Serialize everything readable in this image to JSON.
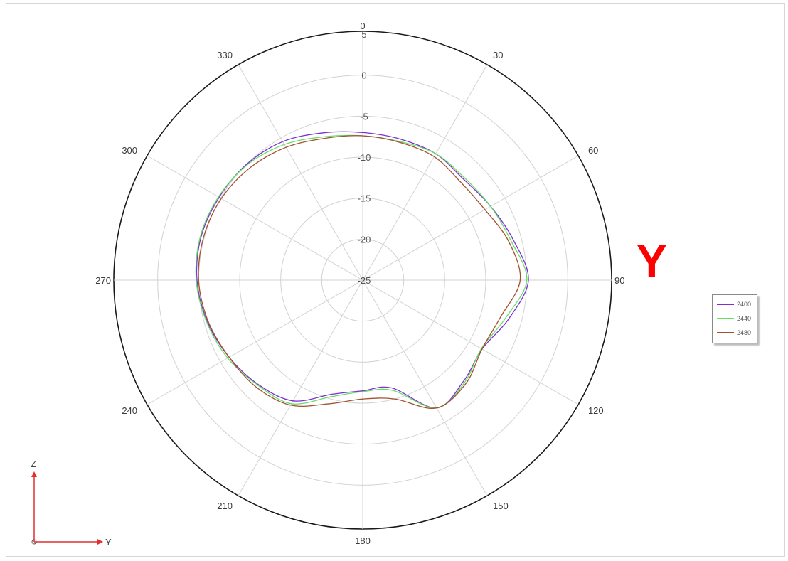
{
  "plane_label": "Y",
  "axis_triad": {
    "z_label": "Z",
    "y_label": "Y",
    "color": "#e03030"
  },
  "chart_data": {
    "type": "polar-line",
    "title": "",
    "angle_labels": [
      "0",
      "30",
      "60",
      "90",
      "120",
      "150",
      "180",
      "210",
      "240",
      "270",
      "300",
      "330"
    ],
    "angle_ticks": [
      0,
      30,
      60,
      90,
      120,
      150,
      180,
      210,
      240,
      270,
      300,
      330
    ],
    "radial_labels": [
      "5",
      "0",
      "-5",
      "-10",
      "-15",
      "-20",
      "-25"
    ],
    "radial_ticks": [
      5,
      0,
      -5,
      -10,
      -15,
      -20,
      -25
    ],
    "r_range": [
      -25,
      5
    ],
    "angle_direction": "clockwise",
    "angle_zero": "top",
    "grid": true,
    "legend_position": "right",
    "series": [
      {
        "name": "2400",
        "color": "#7b2fd4",
        "points": [
          [
            0,
            -7.0
          ],
          [
            15,
            -7.2
          ],
          [
            30,
            -7.2
          ],
          [
            45,
            -7.6
          ],
          [
            60,
            -7.0
          ],
          [
            75,
            -6.0
          ],
          [
            90,
            -4.8
          ],
          [
            105,
            -6.6
          ],
          [
            120,
            -8.2
          ],
          [
            135,
            -7.6
          ],
          [
            150,
            -7.0
          ],
          [
            165,
            -11.4
          ],
          [
            180,
            -11.5
          ],
          [
            195,
            -10.6
          ],
          [
            210,
            -8.0
          ],
          [
            225,
            -7.0
          ],
          [
            240,
            -6.2
          ],
          [
            255,
            -5.4
          ],
          [
            270,
            -4.8
          ],
          [
            285,
            -4.6
          ],
          [
            300,
            -4.8
          ],
          [
            315,
            -5.0
          ],
          [
            330,
            -5.5
          ],
          [
            345,
            -6.4
          ],
          [
            360,
            -7.0
          ]
        ]
      },
      {
        "name": "2440",
        "color": "#66dd66",
        "points": [
          [
            0,
            -7.4
          ],
          [
            15,
            -7.5
          ],
          [
            30,
            -7.2
          ],
          [
            45,
            -7.4
          ],
          [
            60,
            -7.0
          ],
          [
            75,
            -6.3
          ],
          [
            90,
            -5.0
          ],
          [
            105,
            -7.0
          ],
          [
            120,
            -8.3
          ],
          [
            135,
            -7.4
          ],
          [
            150,
            -7.0
          ],
          [
            165,
            -11.1
          ],
          [
            180,
            -11.4
          ],
          [
            195,
            -10.3
          ],
          [
            210,
            -7.6
          ],
          [
            225,
            -6.9
          ],
          [
            240,
            -6.0
          ],
          [
            255,
            -5.3
          ],
          [
            270,
            -4.7
          ],
          [
            285,
            -4.5
          ],
          [
            300,
            -4.7
          ],
          [
            315,
            -5.1
          ],
          [
            330,
            -5.9
          ],
          [
            345,
            -6.9
          ],
          [
            360,
            -7.4
          ]
        ]
      },
      {
        "name": "2480",
        "color": "#a0522d",
        "points": [
          [
            0,
            -7.4
          ],
          [
            15,
            -7.6
          ],
          [
            30,
            -7.6
          ],
          [
            45,
            -8.1
          ],
          [
            60,
            -7.8
          ],
          [
            75,
            -6.6
          ],
          [
            90,
            -5.8
          ],
          [
            105,
            -7.6
          ],
          [
            120,
            -8.2
          ],
          [
            135,
            -7.2
          ],
          [
            150,
            -7.0
          ],
          [
            165,
            -10.0
          ],
          [
            180,
            -10.5
          ],
          [
            195,
            -9.4
          ],
          [
            210,
            -7.4
          ],
          [
            225,
            -6.6
          ],
          [
            240,
            -6.2
          ],
          [
            255,
            -5.5
          ],
          [
            270,
            -5.0
          ],
          [
            285,
            -4.9
          ],
          [
            300,
            -5.1
          ],
          [
            315,
            -5.6
          ],
          [
            330,
            -6.3
          ],
          [
            345,
            -7.1
          ],
          [
            360,
            -7.4
          ]
        ]
      }
    ]
  }
}
